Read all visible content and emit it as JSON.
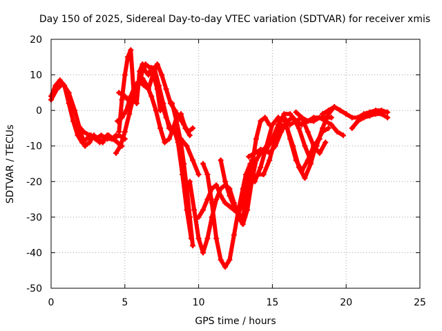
{
  "chart_data": {
    "type": "scatter",
    "title": "Day 150 of 2025, Sidereal Day-to-day VTEC variation (SDTVAR) for receiver xmis",
    "xlabel": "GPS time / hours",
    "ylabel": "SDTVAR / TECUs",
    "xlim": [
      0,
      25
    ],
    "ylim": [
      -50,
      20
    ],
    "xticks": [
      0,
      5,
      10,
      15,
      20,
      25
    ],
    "yticks": [
      -50,
      -40,
      -30,
      -20,
      -10,
      0,
      10,
      20
    ],
    "grid": true,
    "color": "#ff0000",
    "marker": "plus",
    "series": [
      {
        "x": [
          0.0,
          0.3,
          0.6,
          0.9,
          1.2,
          1.5,
          1.8,
          2.1,
          2.4,
          2.7,
          3.0,
          3.3,
          3.6,
          3.9,
          4.2,
          4.5,
          4.8
        ],
        "y": [
          4,
          7,
          8.5,
          7,
          2,
          -3,
          -7,
          -9,
          -8,
          -7,
          -8,
          -9,
          -8,
          -7,
          -8,
          -9,
          -10
        ]
      },
      {
        "x": [
          0.0,
          0.4,
          0.8,
          1.2,
          1.6,
          2.0,
          2.3,
          2.6,
          2.9,
          3.2,
          3.5,
          3.8,
          4.1,
          4.4
        ],
        "y": [
          3,
          6,
          7.5,
          5,
          0,
          -6,
          -10,
          -9,
          -7,
          -8,
          -9,
          -7,
          -8,
          -7
        ]
      },
      {
        "x": [
          1.8,
          2.2,
          2.6,
          3.0,
          3.4,
          3.8,
          4.2,
          4.6,
          5.0
        ],
        "y": [
          -4,
          -6,
          -7,
          -8,
          -7,
          -8,
          -8,
          -7,
          -8
        ]
      },
      {
        "x": [
          4.4,
          4.7,
          5.0,
          5.3,
          5.6,
          5.9,
          6.2,
          6.5,
          6.8,
          7.1,
          7.4,
          7.7,
          8.0,
          8.3,
          8.6,
          8.9,
          9.2,
          9.5
        ],
        "y": [
          -12,
          -10,
          -6,
          -1,
          4,
          8,
          9,
          7,
          4,
          0,
          -5,
          -9,
          -8,
          -5,
          -9,
          -18,
          -28,
          -36
        ]
      },
      {
        "x": [
          4.6,
          4.8,
          5.0,
          5.2,
          5.4,
          5.6,
          5.8,
          6.0,
          6.2,
          6.4,
          6.6,
          6.8,
          7.0,
          7.2,
          7.4
        ],
        "y": [
          -6,
          3,
          10,
          15,
          17,
          5,
          2,
          11,
          13,
          11,
          10,
          12,
          12,
          6,
          0
        ]
      },
      {
        "x": [
          4.6,
          5.0,
          5.4,
          5.8,
          6.1,
          6.4,
          6.7,
          7.0,
          7.3,
          7.6,
          8.0,
          8.4,
          8.8,
          9.2,
          9.6,
          10.0
        ],
        "y": [
          5,
          4,
          2,
          6,
          10,
          13,
          12,
          12,
          7,
          2,
          -5,
          -6,
          -8,
          -10,
          -14,
          -18
        ]
      },
      {
        "x": [
          4.5,
          4.8,
          5.1,
          5.4,
          5.7,
          6.0,
          6.3,
          6.6,
          6.9,
          7.2,
          7.5,
          7.8,
          8.1,
          8.4,
          8.7,
          9.0,
          9.3,
          9.6
        ],
        "y": [
          -3,
          -2,
          0,
          4,
          7,
          8,
          7,
          6,
          10,
          13,
          10,
          6,
          2,
          0,
          -2,
          -4,
          -6,
          -5
        ]
      },
      {
        "x": [
          7.0,
          7.4,
          7.8,
          8.2,
          8.5,
          8.8,
          9.1,
          9.4
        ],
        "y": [
          9,
          3,
          -2,
          -6,
          -2,
          -1,
          -5,
          -7
        ]
      },
      {
        "x": [
          8.2,
          8.5,
          8.8,
          9.0,
          9.2,
          9.4,
          9.6
        ],
        "y": [
          2,
          -3,
          -9,
          -15,
          -22,
          -30,
          -38
        ]
      },
      {
        "x": [
          9.4,
          9.7,
          10.0,
          10.3,
          10.6,
          10.9,
          11.2,
          11.5,
          11.8,
          12.1,
          12.4,
          12.7,
          13.0,
          13.3,
          13.6,
          13.9,
          14.2
        ],
        "y": [
          -20,
          -28,
          -36,
          -40,
          -36,
          -30,
          -25,
          -22,
          -21,
          -22,
          -26,
          -30,
          -32,
          -28,
          -20,
          -14,
          -12
        ]
      },
      {
        "x": [
          10.0,
          10.3,
          10.6,
          10.9,
          11.2,
          11.5,
          11.8,
          12.1,
          12.4,
          12.7,
          13.0,
          13.3,
          13.6,
          13.9,
          14.2,
          14.5,
          14.8
        ],
        "y": [
          -30,
          -28,
          -25,
          -22,
          -21,
          -24,
          -26,
          -27,
          -28,
          -29,
          -30,
          -24,
          -16,
          -8,
          -3,
          -2,
          -4
        ]
      },
      {
        "x": [
          10.3,
          10.6,
          10.9,
          11.2,
          11.5,
          11.8,
          12.1,
          12.4,
          12.7,
          13.0,
          13.2,
          13.5
        ],
        "y": [
          -15,
          -18,
          -26,
          -36,
          -42,
          -44,
          -42,
          -35,
          -28,
          -22,
          -18,
          -15
        ]
      },
      {
        "x": [
          11.5,
          11.8,
          12.1,
          12.4,
          12.7,
          13.0,
          13.3,
          13.6
        ],
        "y": [
          -14,
          -20,
          -24,
          -27,
          -29,
          -26,
          -20,
          -14
        ]
      },
      {
        "x": [
          13.4,
          13.8,
          14.2,
          14.6,
          15.0,
          15.4,
          15.8,
          16.2,
          16.6,
          17.0,
          17.4,
          17.8,
          18.2,
          18.6,
          19.0
        ],
        "y": [
          -13,
          -12,
          -11,
          -11,
          -8,
          -4,
          -1,
          -1,
          -3,
          -2,
          -3,
          -3,
          -2,
          -2,
          -2
        ]
      },
      {
        "x": [
          13.8,
          14.2,
          14.6,
          15.0,
          15.4,
          15.8,
          16.2,
          16.6,
          17.0,
          17.4,
          17.8,
          18.2,
          18.6,
          19.0,
          19.4,
          19.8
        ],
        "y": [
          -20,
          -16,
          -10,
          -4,
          -2,
          -3,
          -4,
          -3,
          -4,
          -3,
          -2,
          -2,
          -3,
          -4,
          -6,
          -7
        ]
      },
      {
        "x": [
          14.0,
          14.4,
          14.8,
          15.2,
          15.6,
          16.0,
          16.4,
          16.8,
          17.2,
          17.6,
          18.0,
          18.4,
          18.8
        ],
        "y": [
          -18,
          -18,
          -14,
          -8,
          -4,
          -5,
          -10,
          -16,
          -19,
          -15,
          -9,
          -6,
          -5
        ]
      },
      {
        "x": [
          14.0,
          14.4,
          14.8,
          15.2,
          15.6,
          16.0,
          16.4,
          16.8,
          17.2,
          17.6,
          18.0,
          18.4,
          18.8,
          19.2,
          19.6,
          20.0
        ],
        "y": [
          -12,
          -11,
          -12,
          -10,
          -6,
          -3,
          -2,
          -5,
          -10,
          -14,
          -10,
          -5,
          -1,
          1,
          0,
          -1
        ]
      },
      {
        "x": [
          15.8,
          16.2,
          16.6,
          17.0,
          17.4,
          17.8,
          18.2
        ],
        "y": [
          -2,
          -8,
          -14,
          -17,
          -14,
          -10,
          -8
        ]
      },
      {
        "x": [
          16.6,
          17.0,
          17.4,
          17.8,
          18.2,
          18.6
        ],
        "y": [
          -0.5,
          -2,
          -6,
          -10,
          -12,
          -9
        ]
      },
      {
        "x": [
          18.4,
          18.8,
          19.2,
          19.6,
          20.0,
          20.4,
          20.8,
          21.2,
          21.6,
          22.0,
          22.4,
          22.8
        ],
        "y": [
          -1,
          0,
          1,
          0,
          -1,
          -2,
          -2,
          -1,
          -0.5,
          0,
          0,
          -0.5
        ]
      },
      {
        "x": [
          20.4,
          20.8,
          21.2,
          21.6,
          22.0,
          22.4,
          22.8
        ],
        "y": [
          -5,
          -3,
          -2,
          -1.5,
          -1,
          -1,
          -2
        ]
      }
    ]
  }
}
